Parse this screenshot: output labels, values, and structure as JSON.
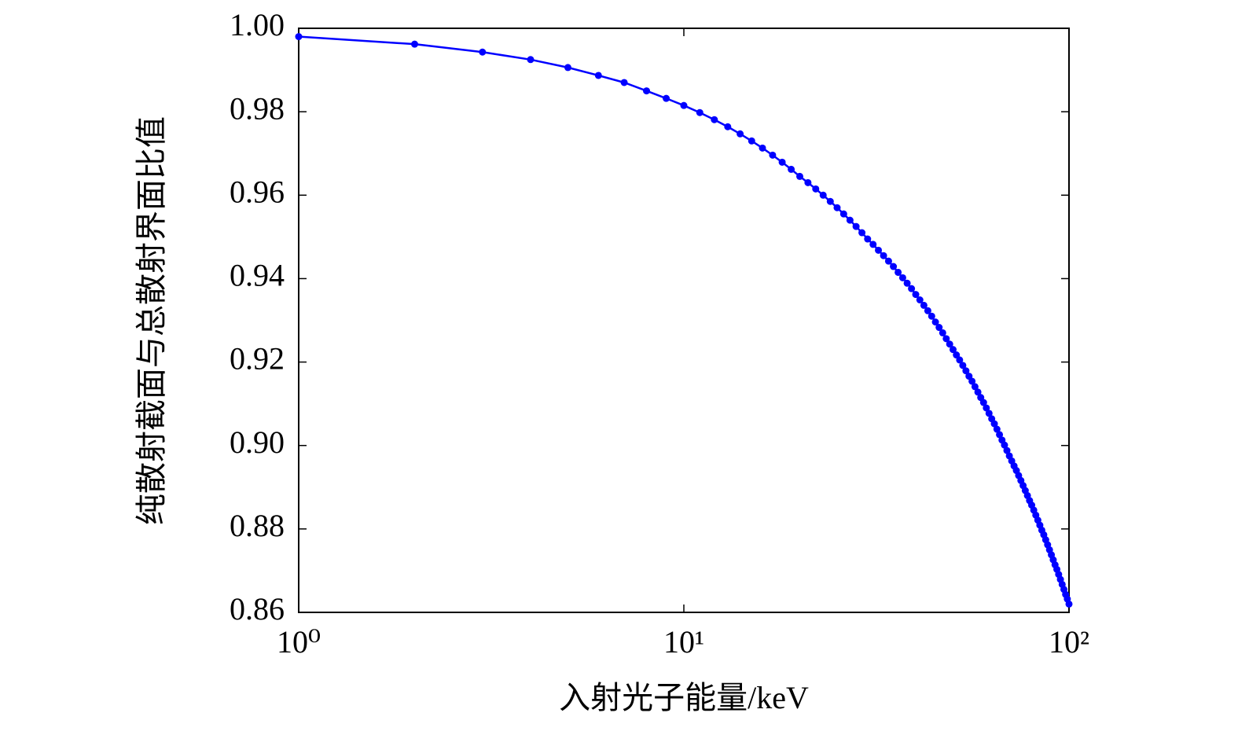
{
  "chart_data": {
    "type": "line",
    "xlabel": "入射光子能量/keV",
    "ylabel": "纯散射截面与总散射界面比值",
    "log_x": true,
    "xlim": [
      1,
      100
    ],
    "xticks": [
      {
        "value": 1,
        "label": "10⁰"
      },
      {
        "value": 10,
        "label": "10¹"
      },
      {
        "value": 100,
        "label": "10²"
      }
    ],
    "ylim": [
      0.86,
      1
    ],
    "yticks": [
      0.86,
      0.88,
      {
        "value": 0.9,
        "label": "0.90"
      },
      0.92,
      0.94,
      0.96,
      0.98,
      {
        "value": 1,
        "label": "1.00"
      }
    ],
    "x": [
      1,
      2,
      3,
      4,
      5,
      6,
      7,
      8,
      9,
      10,
      11,
      12,
      13,
      14,
      15,
      16,
      17,
      18,
      19,
      20,
      21,
      22,
      23,
      24,
      25,
      26,
      27,
      28,
      29,
      30,
      31,
      32,
      33,
      34,
      35,
      36,
      37,
      38,
      39,
      40,
      41,
      42,
      43,
      44,
      45,
      46,
      47,
      48,
      49,
      50,
      51,
      52,
      53,
      54,
      55,
      56,
      57,
      58,
      59,
      60,
      61,
      62,
      63,
      64,
      65,
      66,
      67,
      68,
      69,
      70,
      71,
      72,
      73,
      74,
      75,
      76,
      77,
      78,
      79,
      80,
      81,
      82,
      83,
      84,
      85,
      86,
      87,
      88,
      89,
      90,
      91,
      92,
      93,
      94,
      95,
      96,
      97,
      98,
      99,
      100
    ],
    "series": [
      {
        "color": "#0000ff",
        "values": [
          0.998,
          0.9962,
          0.9943,
          0.9925,
          0.9906,
          0.9887,
          0.987,
          0.985,
          0.9832,
          0.9815,
          0.9798,
          0.9781,
          0.9764,
          0.9747,
          0.973,
          0.9713,
          0.9696,
          0.9679,
          0.9662,
          0.9645,
          0.963,
          0.9615,
          0.96,
          0.9585,
          0.957,
          0.9555,
          0.954,
          0.9525,
          0.951,
          0.9495,
          0.9482,
          0.9468,
          0.9455,
          0.9442,
          0.9429,
          0.9415,
          0.9402,
          0.9389,
          0.9376,
          0.9362,
          0.9349,
          0.9336,
          0.9323,
          0.931,
          0.9296,
          0.9283,
          0.927,
          0.9256,
          0.9243,
          0.923,
          0.9217,
          0.9205,
          0.9192,
          0.9179,
          0.9166,
          0.9154,
          0.9141,
          0.9128,
          0.9115,
          0.9103,
          0.909,
          0.9077,
          0.9064,
          0.9052,
          0.9039,
          0.9026,
          0.9013,
          0.9001,
          0.8988,
          0.8975,
          0.8963,
          0.8951,
          0.894,
          0.8928,
          0.8916,
          0.8904,
          0.8892,
          0.888,
          0.8868,
          0.8857,
          0.8845,
          0.8833,
          0.8821,
          0.8809,
          0.8797,
          0.8786,
          0.8774,
          0.8762,
          0.875,
          0.8738,
          0.8726,
          0.8714,
          0.8703,
          0.8691,
          0.8679,
          0.8667,
          0.8655,
          0.8643,
          0.8632,
          0.862
        ]
      }
    ]
  }
}
